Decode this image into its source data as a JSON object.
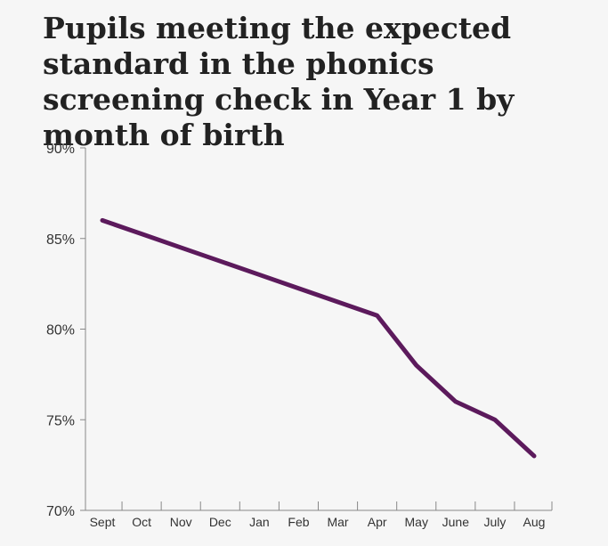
{
  "chart_data": {
    "type": "line",
    "title": "Pupils meeting the expected standard in the phonics screening check in Year 1 by month of birth",
    "xlabel": "",
    "ylabel": "",
    "categories": [
      "Sept",
      "Oct",
      "Nov",
      "Dec",
      "Jan",
      "Feb",
      "Mar",
      "Apr",
      "May",
      "June",
      "July",
      "Aug"
    ],
    "series": [
      {
        "values": [
          86,
          85.25,
          84.5,
          83.75,
          83,
          82.25,
          81.5,
          80.75,
          78,
          76,
          75,
          73
        ]
      }
    ],
    "ylim": [
      70,
      90
    ],
    "yticks": [
      70,
      75,
      80,
      85,
      90
    ],
    "ytick_labels": [
      "70%",
      "75%",
      "80%",
      "85%",
      "90%"
    ],
    "grid": false,
    "line_color": "#5c1a5c",
    "axis_color": "#888888"
  }
}
